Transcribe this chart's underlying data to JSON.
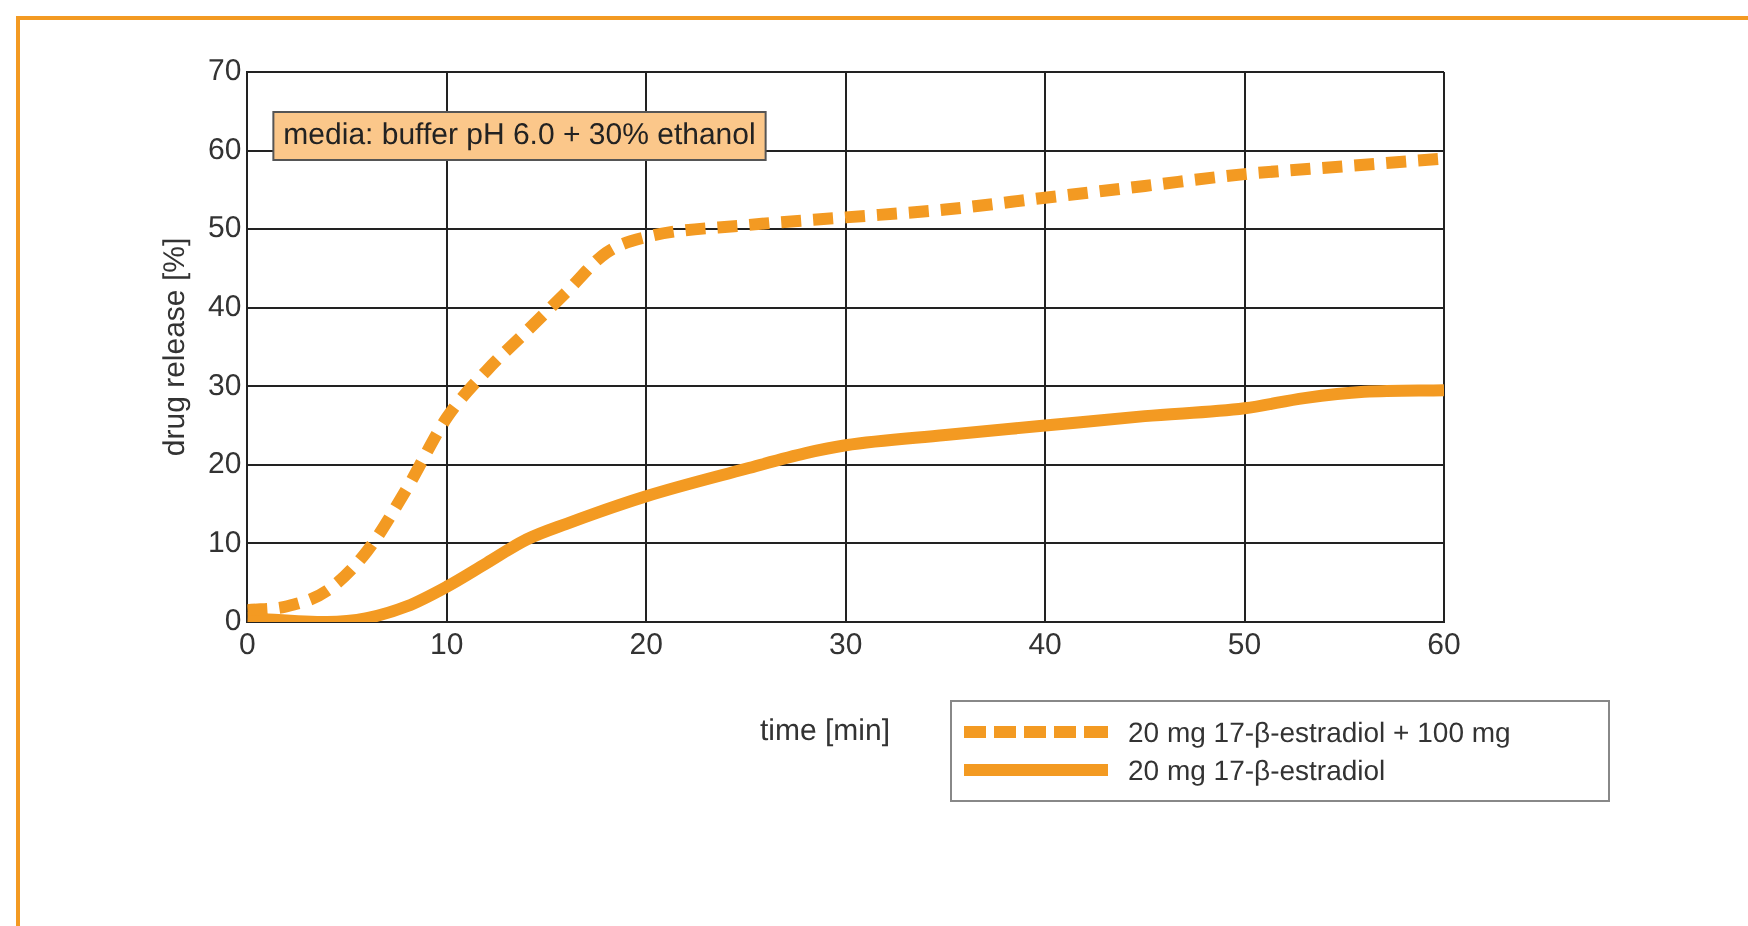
{
  "chart_data": {
    "type": "line",
    "xlabel": "time [min]",
    "ylabel": "drug release [%]",
    "annotations": [
      "media: buffer pH 6.0 + 30% ethanol"
    ],
    "xlim": [
      0,
      60
    ],
    "xticks": [
      0,
      10,
      20,
      30,
      40,
      50,
      60
    ],
    "ylim": [
      0,
      70
    ],
    "yticks": [
      0,
      10,
      20,
      30,
      40,
      50,
      60,
      70
    ],
    "grid": true,
    "legend": "bottom right",
    "marker": "none",
    "series": [
      {
        "name": "20 mg 17-β-estradiol + 100 mg",
        "color": "#f39a22",
        "line_style": "dashed",
        "x": [
          0,
          2,
          4,
          6,
          8,
          10,
          12,
          14,
          16,
          18,
          20,
          25,
          30,
          35,
          40,
          45,
          50,
          55,
          60
        ],
        "values": [
          1.5,
          2,
          4,
          9,
          17,
          26,
          32,
          37,
          42,
          47,
          49,
          50.5,
          51.5,
          52.5,
          54,
          55.5,
          57,
          58,
          59
        ]
      },
      {
        "name": "20 mg 17-β-estradiol",
        "color": "#f39a22",
        "line_style": "solid",
        "x": [
          0,
          4,
          6,
          8,
          10,
          12,
          14,
          16,
          20,
          25,
          28,
          30,
          35,
          40,
          45,
          50,
          53,
          56,
          60
        ],
        "values": [
          0.5,
          0,
          0.5,
          2,
          4.5,
          7.5,
          10.5,
          12.5,
          16,
          19.5,
          21.5,
          22.5,
          23.8,
          25,
          26.2,
          27.2,
          28.5,
          29.3,
          29.5
        ]
      }
    ]
  }
}
